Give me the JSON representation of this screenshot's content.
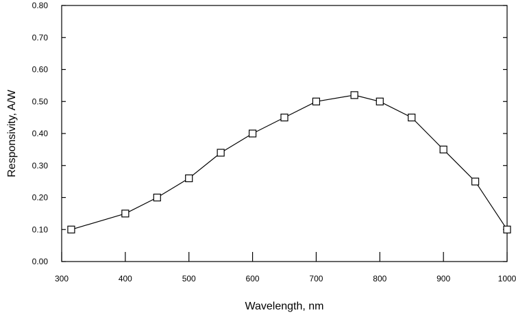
{
  "chart_data": {
    "type": "line",
    "title": "",
    "xlabel": "Wavelength, nm",
    "ylabel": "Responsivity, A/W",
    "xlim": [
      300,
      1000
    ],
    "ylim": [
      0,
      0.8
    ],
    "x_ticks": [
      300,
      400,
      500,
      600,
      700,
      800,
      900,
      1000
    ],
    "x_tick_labels": [
      "300",
      "400",
      "500",
      "600",
      "700",
      "800",
      "900",
      "1000"
    ],
    "y_ticks": [
      0,
      0.1,
      0.2,
      0.3,
      0.4,
      0.5,
      0.6,
      0.7,
      0.8
    ],
    "y_tick_labels": [
      "0.00",
      "0.10",
      "0.20",
      "0.30",
      "0.40",
      "0.50",
      "0.60",
      "0.70",
      "0.80"
    ],
    "grid": false,
    "legend": "none",
    "marker": "open-square",
    "color": "#000000",
    "series": [
      {
        "x": [
          315,
          400,
          450,
          500,
          550,
          600,
          650,
          700,
          760,
          800,
          850,
          900,
          950,
          1000
        ],
        "y": [
          0.1,
          0.15,
          0.2,
          0.26,
          0.34,
          0.4,
          0.45,
          0.5,
          0.52,
          0.5,
          0.45,
          0.35,
          0.25,
          0.1
        ]
      }
    ]
  }
}
